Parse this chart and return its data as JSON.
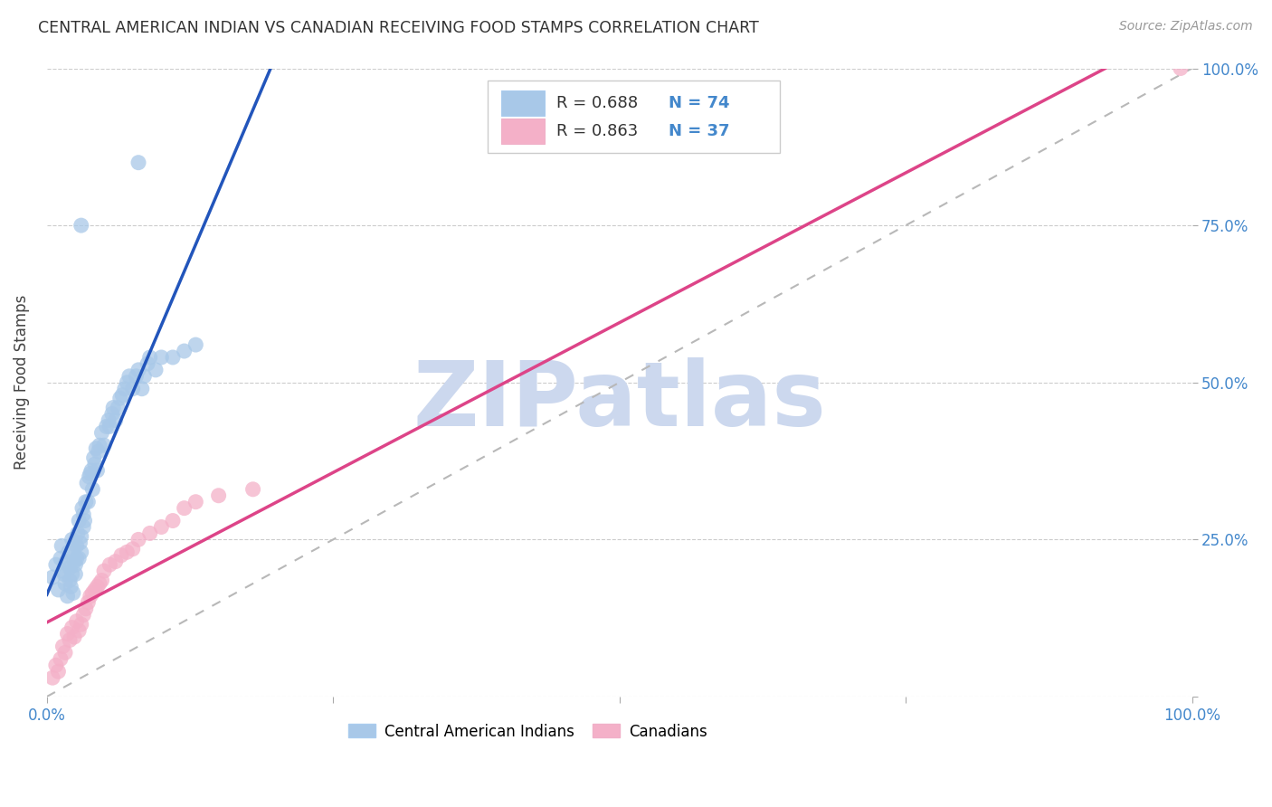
{
  "title": "CENTRAL AMERICAN INDIAN VS CANADIAN RECEIVING FOOD STAMPS CORRELATION CHART",
  "source": "Source: ZipAtlas.com",
  "ylabel": "Receiving Food Stamps",
  "blue_R": 0.688,
  "blue_N": 74,
  "pink_R": 0.863,
  "pink_N": 37,
  "blue_color": "#a8c8e8",
  "pink_color": "#f4b0c8",
  "blue_line_color": "#2255bb",
  "pink_line_color": "#dd4488",
  "diagonal_color": "#b8b8b8",
  "watermark": "ZIPatlas",
  "watermark_color": "#ccd8ee",
  "xlim": [
    0,
    1
  ],
  "ylim": [
    0,
    1
  ],
  "xtick_positions": [
    0,
    0.25,
    0.5,
    0.75,
    1.0
  ],
  "ytick_positions": [
    0,
    0.25,
    0.5,
    0.75,
    1.0
  ],
  "blue_scatter_x": [
    0.005,
    0.008,
    0.01,
    0.012,
    0.013,
    0.014,
    0.015,
    0.016,
    0.017,
    0.018,
    0.019,
    0.02,
    0.02,
    0.021,
    0.022,
    0.022,
    0.023,
    0.023,
    0.024,
    0.025,
    0.025,
    0.026,
    0.026,
    0.027,
    0.028,
    0.028,
    0.029,
    0.03,
    0.03,
    0.031,
    0.032,
    0.032,
    0.033,
    0.034,
    0.035,
    0.036,
    0.037,
    0.038,
    0.039,
    0.04,
    0.041,
    0.042,
    0.043,
    0.044,
    0.045,
    0.046,
    0.048,
    0.05,
    0.052,
    0.054,
    0.055,
    0.057,
    0.058,
    0.06,
    0.062,
    0.064,
    0.066,
    0.068,
    0.07,
    0.072,
    0.075,
    0.078,
    0.08,
    0.083,
    0.085,
    0.088,
    0.09,
    0.095,
    0.1,
    0.11,
    0.12,
    0.13,
    0.03,
    0.08
  ],
  "blue_scatter_y": [
    0.19,
    0.21,
    0.17,
    0.22,
    0.24,
    0.2,
    0.195,
    0.18,
    0.215,
    0.16,
    0.23,
    0.185,
    0.205,
    0.175,
    0.195,
    0.25,
    0.165,
    0.235,
    0.215,
    0.195,
    0.21,
    0.22,
    0.24,
    0.26,
    0.22,
    0.28,
    0.245,
    0.255,
    0.23,
    0.3,
    0.27,
    0.29,
    0.28,
    0.31,
    0.34,
    0.31,
    0.35,
    0.355,
    0.36,
    0.33,
    0.38,
    0.37,
    0.395,
    0.36,
    0.39,
    0.4,
    0.42,
    0.4,
    0.43,
    0.44,
    0.43,
    0.45,
    0.46,
    0.44,
    0.46,
    0.475,
    0.48,
    0.49,
    0.5,
    0.51,
    0.49,
    0.51,
    0.52,
    0.49,
    0.51,
    0.53,
    0.54,
    0.52,
    0.54,
    0.54,
    0.55,
    0.56,
    0.75,
    0.85
  ],
  "pink_scatter_x": [
    0.005,
    0.008,
    0.01,
    0.012,
    0.014,
    0.016,
    0.018,
    0.02,
    0.022,
    0.024,
    0.026,
    0.028,
    0.03,
    0.032,
    0.034,
    0.036,
    0.038,
    0.04,
    0.042,
    0.044,
    0.046,
    0.048,
    0.05,
    0.055,
    0.06,
    0.065,
    0.07,
    0.075,
    0.08,
    0.09,
    0.1,
    0.11,
    0.12,
    0.13,
    0.15,
    0.18,
    0.99
  ],
  "pink_scatter_y": [
    0.03,
    0.05,
    0.04,
    0.06,
    0.08,
    0.07,
    0.1,
    0.09,
    0.11,
    0.095,
    0.12,
    0.105,
    0.115,
    0.13,
    0.14,
    0.15,
    0.16,
    0.165,
    0.17,
    0.175,
    0.18,
    0.185,
    0.2,
    0.21,
    0.215,
    0.225,
    0.23,
    0.235,
    0.25,
    0.26,
    0.27,
    0.28,
    0.3,
    0.31,
    0.32,
    0.33,
    1.0
  ],
  "legend_labels": [
    "Central American Indians",
    "Canadians"
  ]
}
